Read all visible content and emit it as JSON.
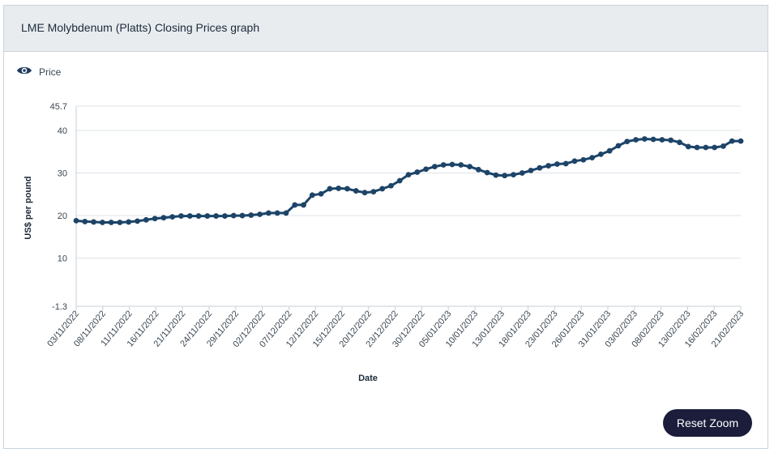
{
  "header": {
    "title": "LME Molybdenum (Platts) Closing Prices graph"
  },
  "legend": {
    "label": "Price",
    "icon": "eye-icon"
  },
  "reset_button": {
    "label": "Reset Zoom"
  },
  "colors": {
    "line": "#1d4468",
    "button_bg": "#1b1d3a",
    "header_bg": "#e8ecef",
    "grid": "#dde3e8"
  },
  "chart_data": {
    "type": "line",
    "title": "LME Molybdenum (Platts) Closing Prices graph",
    "xlabel": "Date",
    "ylabel": "US$ per pound",
    "ylim": [
      -1.3,
      45.7
    ],
    "y_ticks": [
      "45.7",
      "40",
      "30",
      "20",
      "10",
      "-1.3"
    ],
    "y_tick_values": [
      45.7,
      40,
      30,
      20,
      10,
      -1.3
    ],
    "x_tick_labels": [
      "03/11/2022",
      "08/11/2022",
      "11/11/2022",
      "16/11/2022",
      "21/11/2022",
      "24/11/2022",
      "29/11/2022",
      "02/12/2022",
      "07/12/2022",
      "12/12/2022",
      "15/12/2022",
      "20/12/2022",
      "23/12/2022",
      "30/12/2022",
      "05/01/2023",
      "10/01/2023",
      "13/01/2023",
      "18/01/2023",
      "23/01/2023",
      "26/01/2023",
      "31/01/2023",
      "03/02/2023",
      "08/02/2023",
      "13/02/2023",
      "16/02/2023",
      "21/02/2023"
    ],
    "grid": true,
    "legend_position": "top-left",
    "series": [
      {
        "name": "Price",
        "values": [
          18.8,
          18.6,
          18.5,
          18.4,
          18.4,
          18.4,
          18.5,
          18.7,
          19.0,
          19.3,
          19.5,
          19.7,
          19.9,
          19.9,
          19.9,
          19.9,
          19.9,
          19.9,
          20.0,
          20.0,
          20.1,
          20.3,
          20.6,
          20.6,
          20.6,
          22.5,
          22.5,
          24.8,
          25.1,
          26.3,
          26.4,
          26.3,
          25.8,
          25.4,
          25.6,
          26.3,
          27.0,
          28.2,
          29.6,
          30.2,
          30.9,
          31.5,
          31.9,
          32.0,
          31.9,
          31.5,
          30.8,
          30.1,
          29.5,
          29.4,
          29.6,
          30.0,
          30.6,
          31.2,
          31.7,
          32.1,
          32.2,
          32.8,
          33.1,
          33.6,
          34.4,
          35.2,
          36.4,
          37.4,
          37.8,
          38.0,
          37.9,
          37.8,
          37.7,
          37.2,
          36.2,
          36.0,
          36.0,
          36.0,
          36.3,
          37.5,
          37.5
        ]
      }
    ]
  }
}
